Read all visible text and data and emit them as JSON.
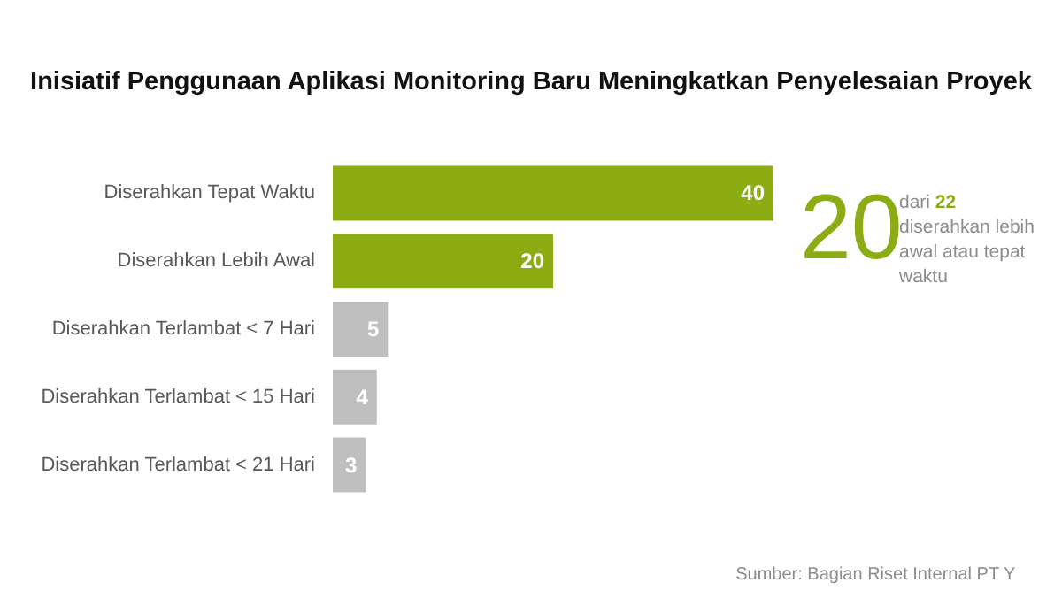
{
  "chart_data": {
    "type": "bar",
    "orientation": "horizontal",
    "title": "Inisiatif Penggunaan Aplikasi Monitoring Baru Meningkatkan Penyelesaian Proyek",
    "categories": [
      "Diserahkan Tepat Waktu",
      "Diserahkan Lebih Awal",
      "Diserahkan Terlambat < 7 Hari",
      "Diserahkan Terlambat < 15 Hari",
      "Diserahkan Terlambat < 21 Hari"
    ],
    "values": [
      40,
      20,
      5,
      4,
      3
    ],
    "colors": [
      "#8cac14",
      "#8cac14",
      "#bfbfbf",
      "#bfbfbf",
      "#bfbfbf"
    ],
    "data_labels": true,
    "annotations": [
      "20",
      "dari 22 diserahkan lebih awal atau tepat waktu",
      "Sumber: Bagian Riset Internal PT Y"
    ]
  }
}
